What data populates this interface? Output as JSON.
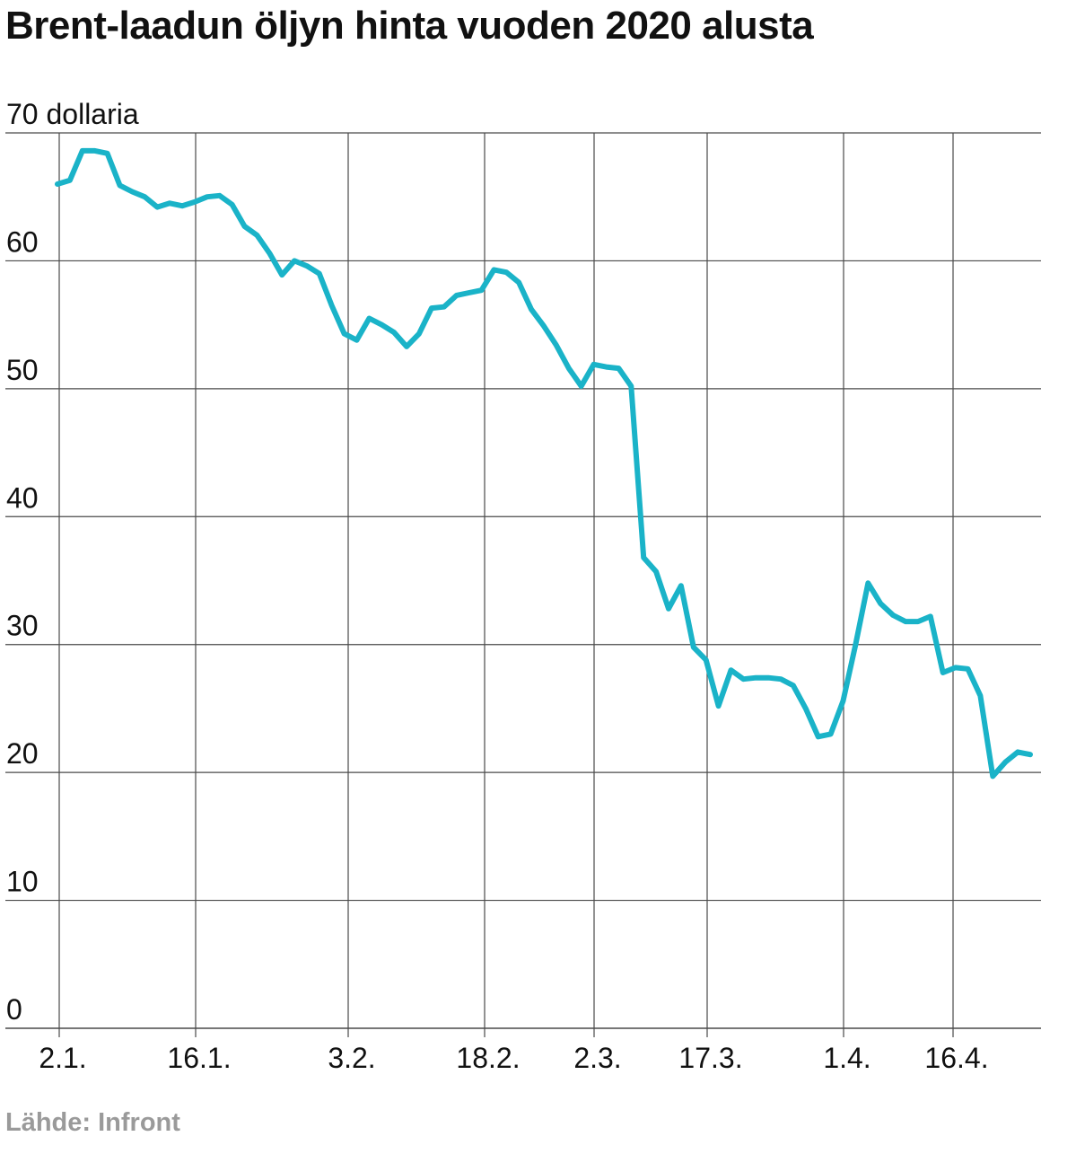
{
  "title": "Brent-laadun öljyn hinta vuoden 2020 alusta",
  "source": "Lähde: Infront",
  "colors": {
    "line": "#1ab3c8",
    "grid": "#4a4a4a",
    "text": "#111111",
    "source": "#9a9a9a"
  },
  "chart_data": {
    "type": "line",
    "title": "Brent-laadun öljyn hinta vuoden 2020 alusta",
    "ylabel": "dollaria",
    "xlabel": "",
    "ylim": [
      0,
      70
    ],
    "yticks": [
      0,
      10,
      20,
      30,
      40,
      50,
      60,
      70
    ],
    "ytick_labels": [
      "0",
      "10",
      "20",
      "30",
      "40",
      "50",
      "60",
      "70 dollaria"
    ],
    "xticks": [
      "2.1.",
      "16.1.",
      "3.2.",
      "18.2.",
      "2.3.",
      "17.3.",
      "1.4.",
      "16.4."
    ],
    "grid": true,
    "legend": "none",
    "series": [
      {
        "values": [
          66.0,
          66.3,
          68.6,
          68.6,
          68.4,
          65.9,
          65.4,
          65.0,
          64.2,
          64.5,
          64.3,
          64.6,
          65.0,
          65.1,
          64.4,
          62.7,
          62.0,
          60.6,
          58.9,
          60.0,
          59.6,
          59.0,
          56.5,
          54.3,
          53.8,
          55.5,
          55.0,
          54.4,
          53.3,
          54.3,
          56.3,
          56.4,
          57.3,
          57.5,
          57.7,
          59.3,
          59.1,
          58.3,
          56.2,
          54.9,
          53.4,
          51.6,
          50.2,
          51.9,
          51.7,
          51.6,
          50.2,
          36.8,
          35.7,
          32.8,
          34.6,
          29.8,
          28.8,
          25.2,
          28.0,
          27.3,
          27.4,
          27.4,
          27.3,
          26.8,
          25.0,
          22.8,
          23.0,
          25.6,
          30.0,
          34.8,
          33.2,
          32.3,
          31.8,
          31.8,
          32.2,
          27.8,
          28.2,
          28.1,
          26.0,
          19.7,
          20.8,
          21.6,
          21.4
        ]
      }
    ]
  }
}
